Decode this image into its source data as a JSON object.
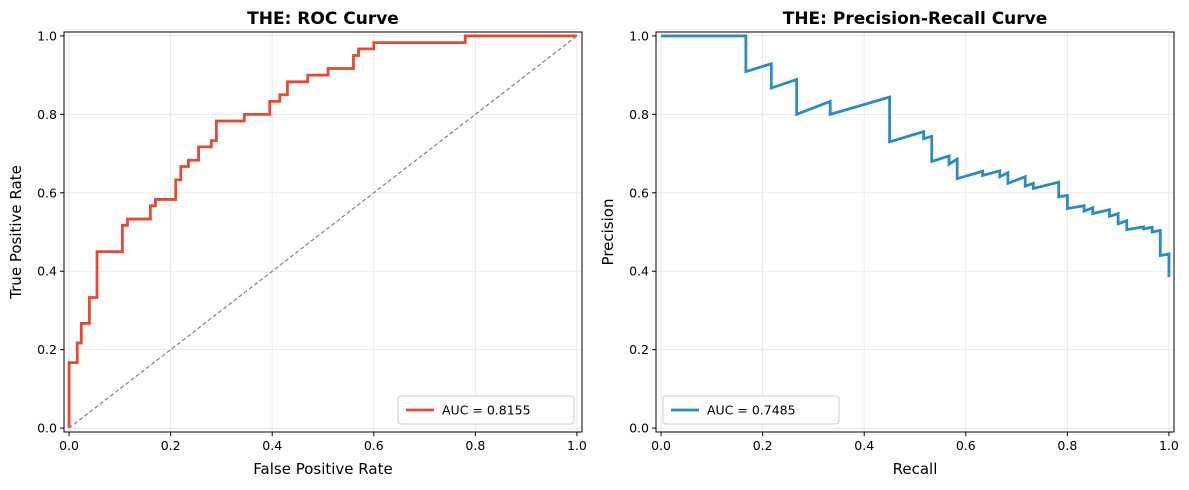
{
  "chart_data": [
    {
      "type": "line",
      "title": "THE: ROC Curve",
      "xlabel": "False Positive Rate",
      "ylabel": "True Positive Rate",
      "xlim": [
        -0.01,
        1.01
      ],
      "ylim": [
        -0.01,
        1.01
      ],
      "xticks": [
        "0.0",
        "0.2",
        "0.4",
        "0.6",
        "0.8",
        "1.0"
      ],
      "yticks": [
        "0.0",
        "0.2",
        "0.4",
        "0.6",
        "0.8",
        "1.0"
      ],
      "grid": true,
      "legend_position": "lower-right",
      "series": [
        {
          "name": "AUC = 0.8155",
          "color": "#e34a33",
          "style": "solid",
          "x": [
            0,
            0,
            0.008,
            0.008,
            0.016,
            0.016,
            0.024,
            0.024,
            0.04,
            0.04,
            0.055,
            0.055,
            0.08,
            0.105,
            0.105,
            0.115,
            0.115,
            0.16,
            0.16,
            0.17,
            0.17,
            0.21,
            0.21,
            0.22,
            0.22,
            0.235,
            0.235,
            0.255,
            0.255,
            0.28,
            0.28,
            0.29,
            0.29,
            0.345,
            0.345,
            0.395,
            0.395,
            0.415,
            0.415,
            0.43,
            0.43,
            0.47,
            0.47,
            0.51,
            0.51,
            0.56,
            0.56,
            0.57,
            0.57,
            0.6,
            0.6,
            0.78,
            0.78,
            1.0
          ],
          "y": [
            0,
            0.167,
            0.167,
            0.167,
            0.167,
            0.217,
            0.217,
            0.267,
            0.267,
            0.333,
            0.333,
            0.45,
            0.45,
            0.45,
            0.517,
            0.517,
            0.533,
            0.533,
            0.567,
            0.567,
            0.583,
            0.583,
            0.633,
            0.633,
            0.667,
            0.667,
            0.683,
            0.683,
            0.717,
            0.717,
            0.733,
            0.733,
            0.783,
            0.783,
            0.8,
            0.8,
            0.833,
            0.833,
            0.85,
            0.85,
            0.883,
            0.883,
            0.9,
            0.9,
            0.917,
            0.917,
            0.95,
            0.95,
            0.967,
            0.967,
            0.983,
            0.983,
            1.0,
            1.0
          ]
        },
        {
          "name": "",
          "color": "#808080",
          "style": "dashed",
          "x": [
            0,
            1
          ],
          "y": [
            0,
            1
          ]
        }
      ]
    },
    {
      "type": "line",
      "title": "THE: Precision-Recall Curve",
      "xlabel": "Recall",
      "ylabel": "Precision",
      "xlim": [
        -0.01,
        1.01
      ],
      "ylim": [
        -0.01,
        1.01
      ],
      "xticks": [
        "0.0",
        "0.2",
        "0.4",
        "0.6",
        "0.8",
        "1.0"
      ],
      "yticks": [
        "0.0",
        "0.2",
        "0.4",
        "0.6",
        "0.8",
        "1.0"
      ],
      "grid": true,
      "legend_position": "lower-left",
      "series": [
        {
          "name": "AUC = 0.7485",
          "color": "#2b8cbe",
          "style": "solid",
          "x": [
            0,
            0.167,
            0.167,
            0.217,
            0.217,
            0.267,
            0.267,
            0.333,
            0.333,
            0.45,
            0.45,
            0.517,
            0.517,
            0.533,
            0.533,
            0.567,
            0.567,
            0.583,
            0.583,
            0.633,
            0.633,
            0.667,
            0.667,
            0.683,
            0.683,
            0.717,
            0.717,
            0.733,
            0.733,
            0.783,
            0.783,
            0.8,
            0.8,
            0.833,
            0.833,
            0.85,
            0.85,
            0.883,
            0.883,
            0.9,
            0.9,
            0.917,
            0.917,
            0.95,
            0.95,
            0.967,
            0.967,
            0.983,
            0.983,
            1.0,
            1.0
          ],
          "y": [
            1.0,
            1.0,
            0.909,
            0.929,
            0.867,
            0.889,
            0.8,
            0.833,
            0.8,
            0.844,
            0.73,
            0.756,
            0.738,
            0.744,
            0.68,
            0.694,
            0.673,
            0.686,
            0.636,
            0.655,
            0.644,
            0.656,
            0.641,
            0.651,
            0.624,
            0.641,
            0.617,
            0.624,
            0.611,
            0.627,
            0.59,
            0.593,
            0.56,
            0.567,
            0.553,
            0.562,
            0.547,
            0.557,
            0.54,
            0.547,
            0.521,
            0.529,
            0.506,
            0.513,
            0.508,
            0.512,
            0.5,
            0.504,
            0.44,
            0.444,
            0.385
          ]
        }
      ]
    }
  ]
}
